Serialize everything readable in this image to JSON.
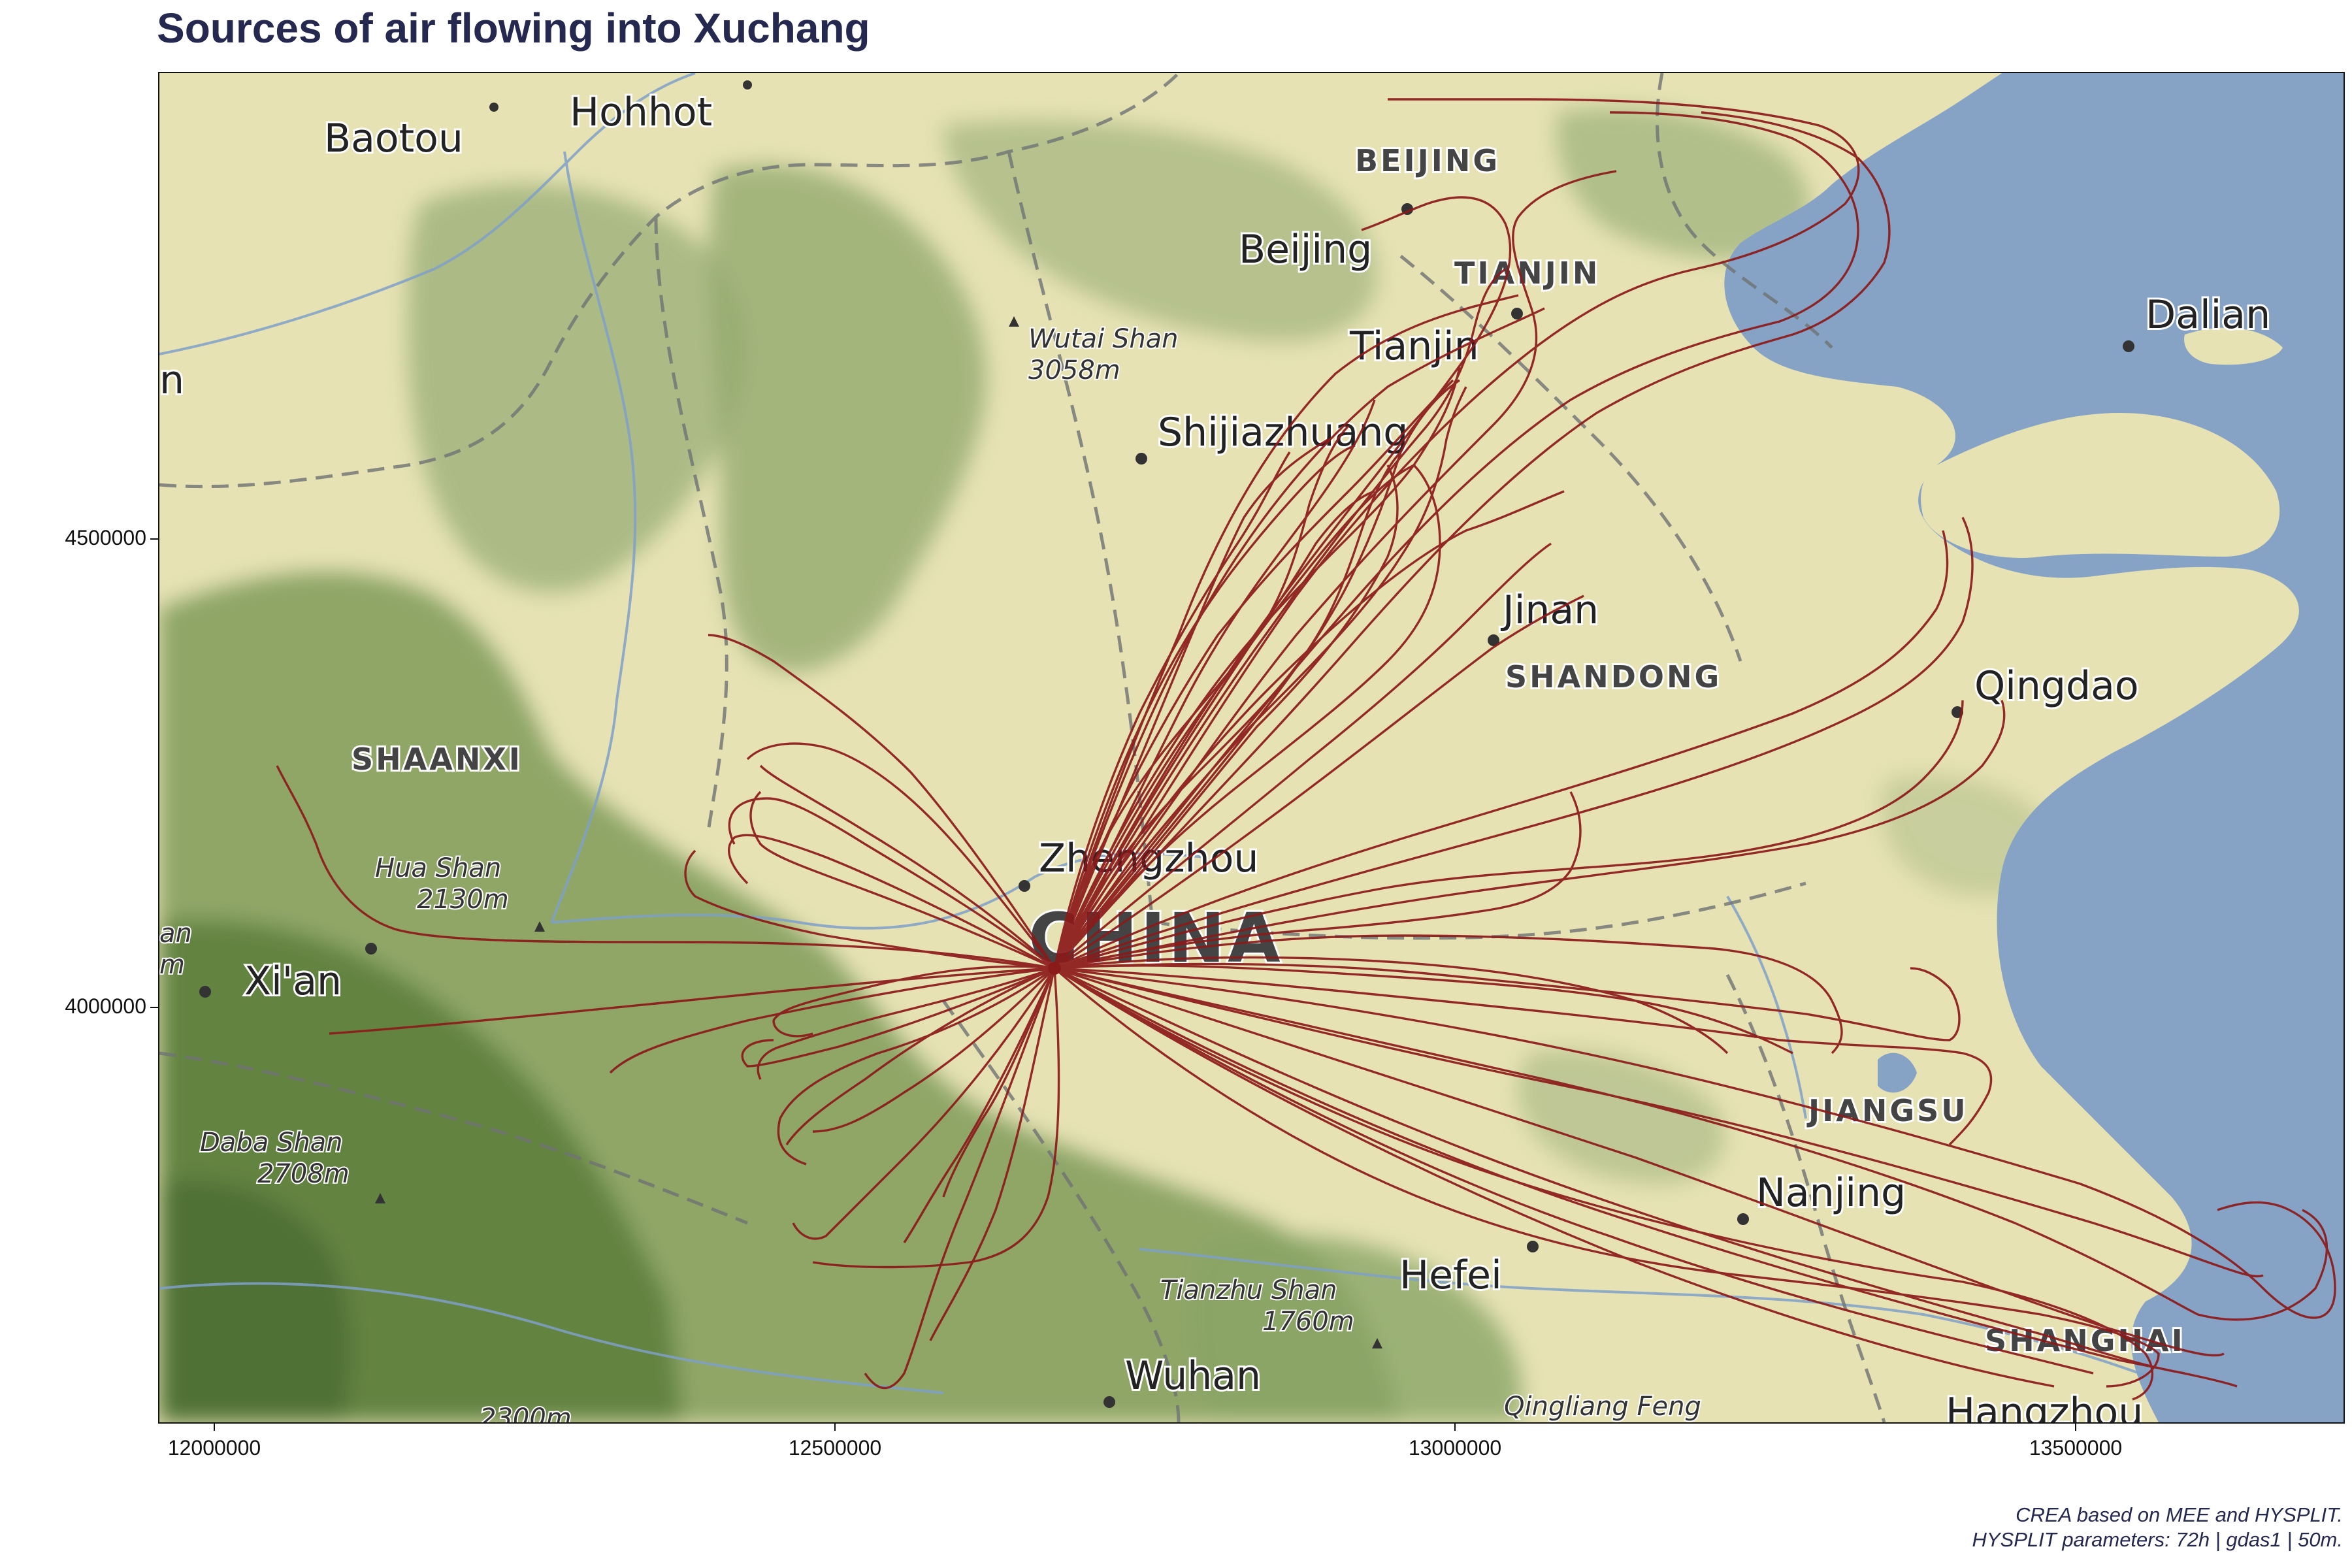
{
  "title": "Sources of air flowing into Xuchang",
  "caption": {
    "line1": "CREA based on MEE and HYSPLIT.",
    "line2": "HYSPLIT parameters: 72h | gdas1 | 50m."
  },
  "axes": {
    "x_ticks": [
      "12000000",
      "12500000",
      "13000000",
      "13500000"
    ],
    "y_ticks": [
      "4500000",
      "4000000"
    ]
  },
  "colors": {
    "trajectory": "#8b1a1a",
    "sea": "#86a3c6",
    "land": "#e6e2b4",
    "terrain": "#8fa664",
    "title": "#26294f"
  },
  "map_labels": {
    "baotou": "Baotou",
    "hohhot": "Hohhot",
    "beijing_region": "BEIJING",
    "beijing": "Beijing",
    "tianjin_region": "TIANJIN",
    "tianjin": "Tianjin",
    "dalian": "Dalian",
    "wutai_shan": "Wutai Shan",
    "wutai_elev": "3058m",
    "shijiazhuang": "Shijiazhuang",
    "jinan": "Jinan",
    "shandong": "SHANDONG",
    "qingdao": "Qingdao",
    "shaanxi": "SHAANXI",
    "hua_shan": "Hua Shan",
    "hua_elev": "2130m",
    "zhengzhou": "Zhengzhou",
    "china": "CHINA",
    "xian": "Xi'an",
    "daba_shan": "Daba Shan",
    "daba_elev": "2708m",
    "jiangsu": "JIANGSU",
    "nanjing": "Nanjing",
    "hefei": "Hefei",
    "tianzhu_shan": "Tianzhu Shan",
    "tianzhu_elev": "1760m",
    "shanghai": "SHANGHAI",
    "wuhan": "Wuhan",
    "qingliang_feng": "Qingliang Feng",
    "hangzhou": "Hangzhou",
    "edge_n": "n",
    "edge_an": "an",
    "edge_m": "m",
    "edge_elev": "2300m"
  }
}
